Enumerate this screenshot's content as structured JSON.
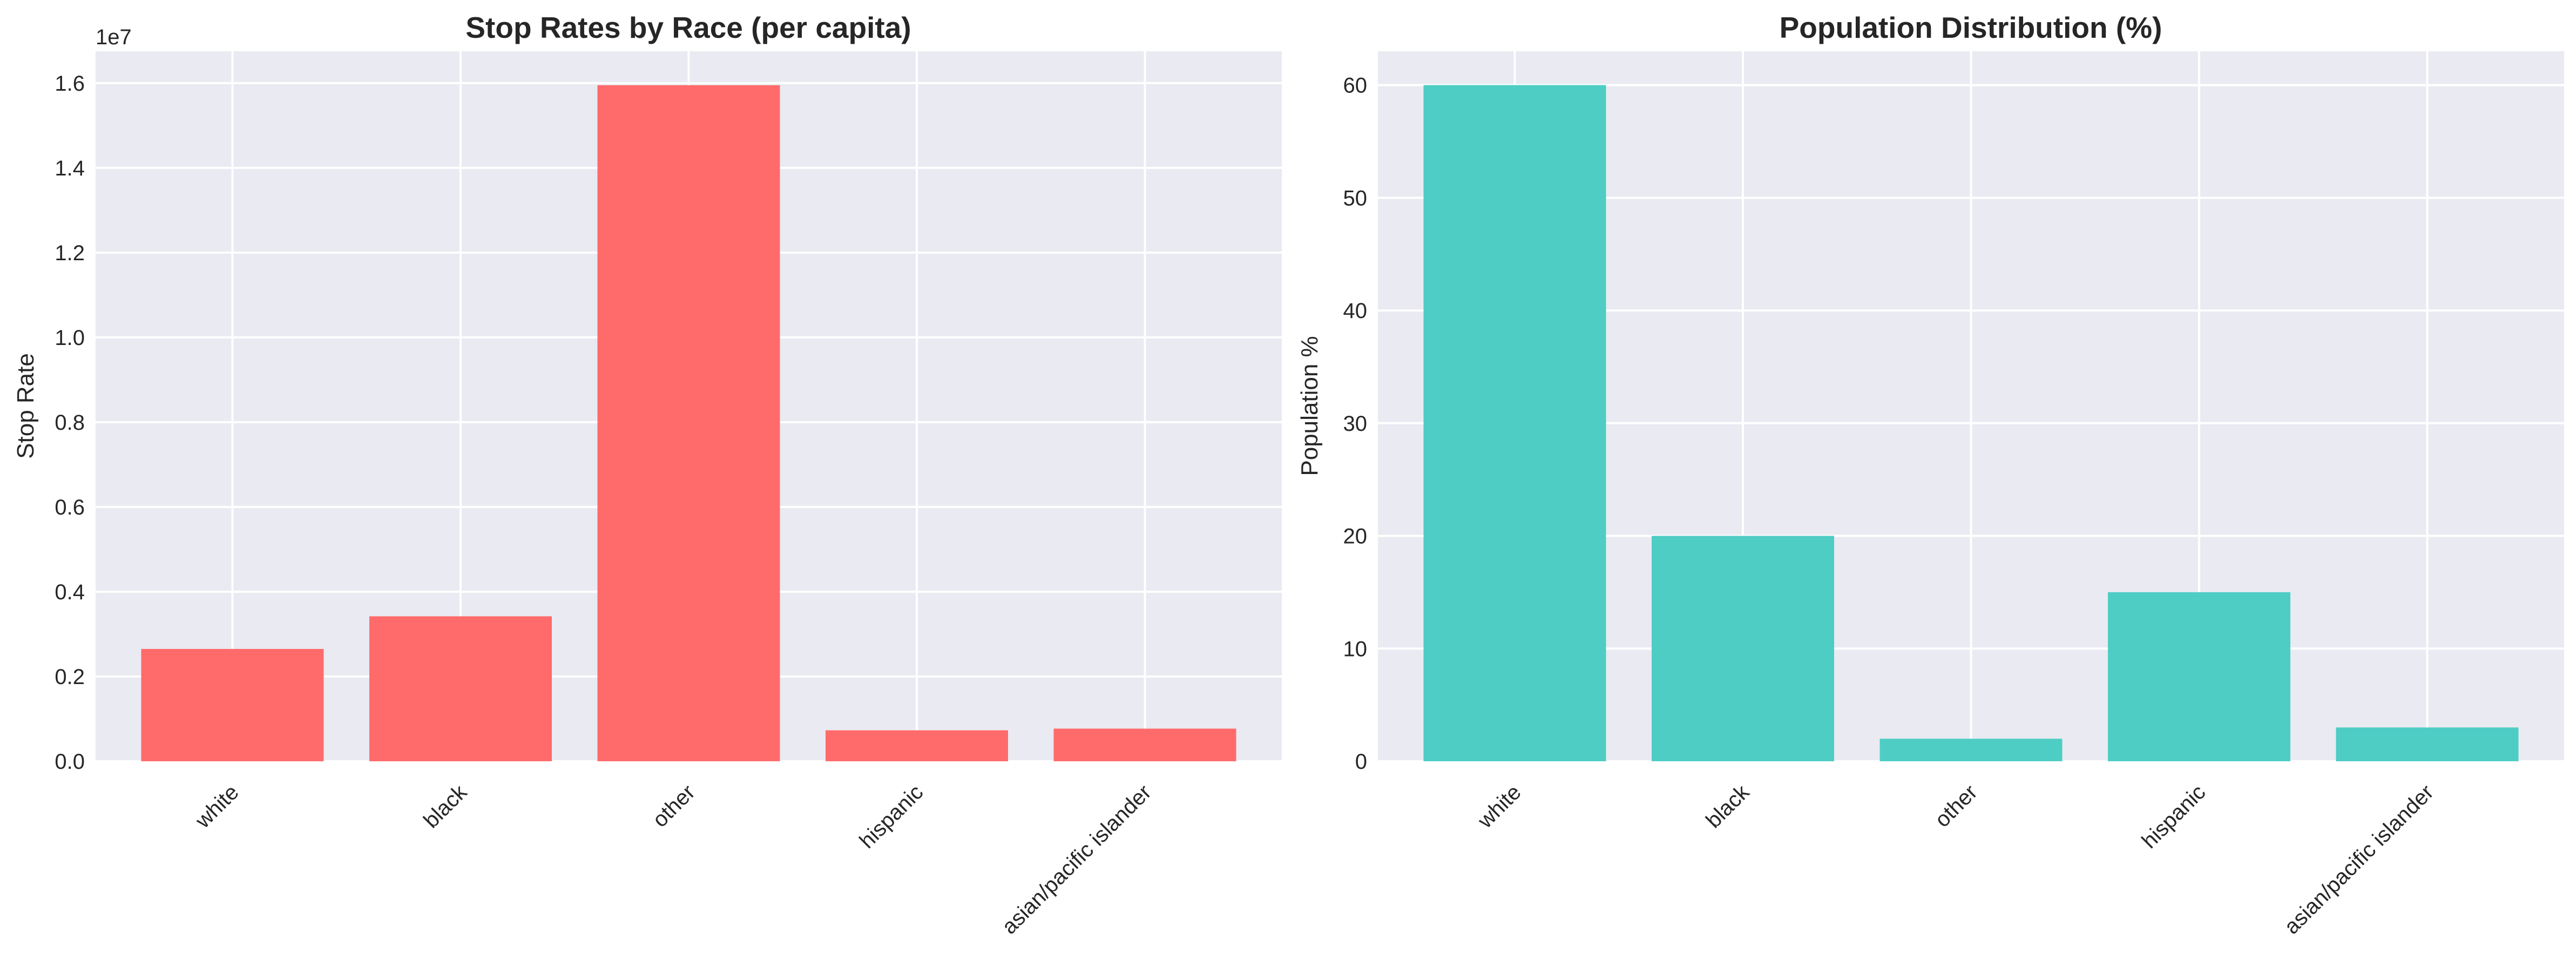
{
  "chart_data": [
    {
      "type": "bar",
      "title": "Stop Rates by Race (per capita)",
      "xlabel": "",
      "ylabel": "Stop Rate",
      "categories": [
        "white",
        "black",
        "other",
        "hispanic",
        "asian/pacific islander"
      ],
      "values": [
        2650000,
        3420000,
        15950000,
        730000,
        770000
      ],
      "ylim": [
        0,
        16750000
      ],
      "yticks": [
        0,
        2000000,
        4000000,
        6000000,
        8000000,
        10000000,
        12000000,
        14000000,
        16000000
      ],
      "ytick_labels": [
        "0.0",
        "0.2",
        "0.4",
        "0.6",
        "0.8",
        "1.0",
        "1.2",
        "1.4",
        "1.6"
      ],
      "y_offset_label": "1e7",
      "color": "#ff6b6b",
      "grid": true
    },
    {
      "type": "bar",
      "title": "Population Distribution (%)",
      "xlabel": "",
      "ylabel": "Population %",
      "categories": [
        "white",
        "black",
        "other",
        "hispanic",
        "asian/pacific islander"
      ],
      "values": [
        60,
        20,
        2,
        15,
        3
      ],
      "ylim": [
        0,
        63
      ],
      "yticks": [
        0,
        10,
        20,
        30,
        40,
        50,
        60
      ],
      "ytick_labels": [
        "0",
        "10",
        "20",
        "30",
        "40",
        "50",
        "60"
      ],
      "color": "#4ecdc4",
      "grid": true
    }
  ]
}
